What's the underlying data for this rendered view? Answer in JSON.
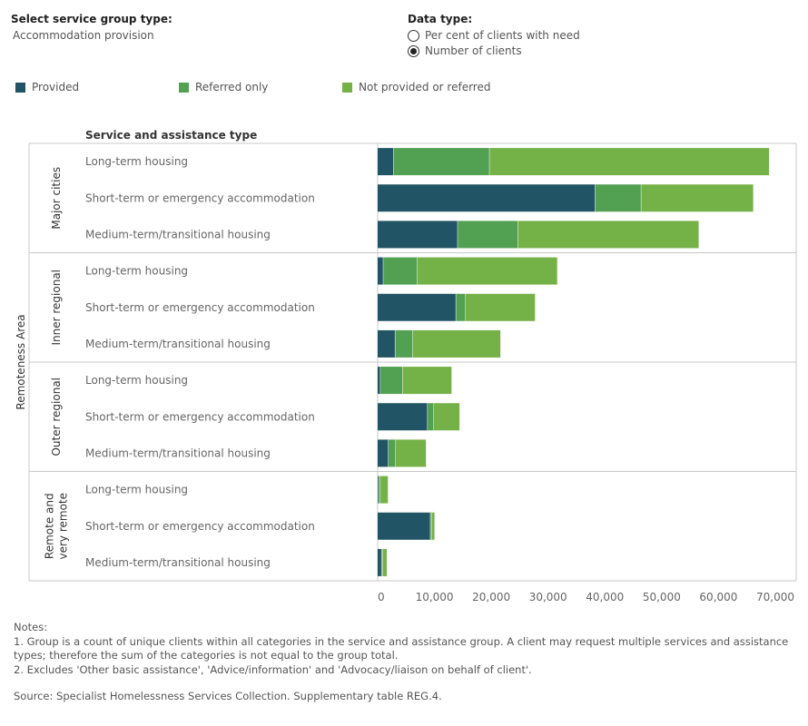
{
  "controls": {
    "service_group": {
      "title": "Select service group type:",
      "value": "Accommodation provision"
    },
    "data_type": {
      "title": "Data type:",
      "options": [
        {
          "label": "Per cent of clients with need",
          "checked": false
        },
        {
          "label": "Number of clients",
          "checked": true
        }
      ]
    }
  },
  "colors": {
    "provided": "#215565",
    "referred": "#52a052",
    "not_provided": "#74b146"
  },
  "chart_data": {
    "type": "bar",
    "orientation": "horizontal",
    "stacked": true,
    "row_header": "Service and assistance type",
    "group_axis_label": "Remoteness Area",
    "xlim": [
      0,
      72000
    ],
    "x_ticks": [
      0,
      10000,
      20000,
      30000,
      40000,
      50000,
      60000,
      70000
    ],
    "x_tick_labels": [
      "0",
      "10,000",
      "20,000",
      "30,000",
      "40,000",
      "50,000",
      "60,000",
      "70,000"
    ],
    "legend": [
      "Provided",
      "Referred only",
      "Not provided or referred"
    ],
    "legend_position": "top-left",
    "series": [
      {
        "name": "Provided"
      },
      {
        "name": "Referred only"
      },
      {
        "name": "Not provided or referred"
      }
    ],
    "groups": [
      {
        "name": "Major cities",
        "rows": [
          {
            "label": "Long-term housing",
            "values": [
              2800,
              16900,
              49200
            ]
          },
          {
            "label": "Short-term or emergency accommodation",
            "values": [
              38300,
              8100,
              19700
            ]
          },
          {
            "label": "Medium-term/transitional housing",
            "values": [
              14100,
              10600,
              31800
            ]
          }
        ]
      },
      {
        "name": "Inner regional",
        "rows": [
          {
            "label": "Long-term housing",
            "values": [
              1000,
              6000,
              24600
            ]
          },
          {
            "label": "Short-term or emergency accommodation",
            "values": [
              13800,
              1700,
              12200
            ]
          },
          {
            "label": "Medium-term/transitional housing",
            "values": [
              3100,
              3100,
              15400
            ]
          }
        ]
      },
      {
        "name": "Outer regional",
        "rows": [
          {
            "label": "Long-term housing",
            "values": [
              500,
              3900,
              8600
            ]
          },
          {
            "label": "Short-term or emergency accommodation",
            "values": [
              8800,
              1100,
              4500
            ]
          },
          {
            "label": "Medium-term/transitional housing",
            "values": [
              1900,
              1300,
              5300
            ]
          }
        ]
      },
      {
        "name": "Remote and very remote",
        "rows": [
          {
            "label": "Long-term housing",
            "values": [
              200,
              300,
              1300
            ]
          },
          {
            "label": "Short-term or emergency accommodation",
            "values": [
              9300,
              200,
              500
            ]
          },
          {
            "label": "Medium-term/transitional housing",
            "values": [
              700,
              200,
              700
            ]
          }
        ]
      }
    ]
  },
  "notes": {
    "heading": "Notes:",
    "lines": [
      "1. Group is a count of unique clients within all categories in the service and assistance group. A client may request multiple services and assistance types; therefore the sum of the categories is not equal to the group total.",
      "2. Excludes 'Other basic assistance', 'Advice/information' and 'Advocacy/liaison on behalf of client'."
    ],
    "source": "Source: Specialist Homelessness Services Collection. Supplementary table REG.4."
  }
}
